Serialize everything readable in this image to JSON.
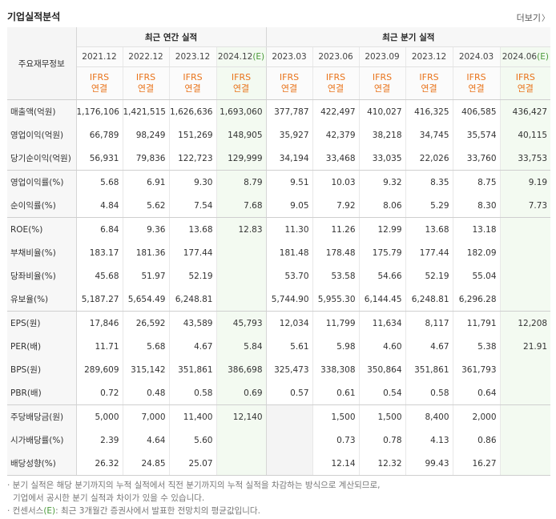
{
  "header": {
    "title": "기업실적분석",
    "more_label": "더보기",
    "more_chevron": "〉"
  },
  "table": {
    "main_header": "주요재무정보",
    "annual_group": "최근 연간 실적",
    "quarter_group": "최근 분기 실적",
    "ifrs_line1": "IFRS",
    "ifrs_line2": "연결",
    "est_mark": "(E)",
    "annual_periods": [
      "2021.12",
      "2022.12",
      "2023.12",
      "2024.12"
    ],
    "quarter_periods": [
      "2023.03",
      "2023.06",
      "2023.09",
      "2023.12",
      "2024.03",
      "2024.06"
    ],
    "rows": [
      {
        "label": "매출액(억원)",
        "values": [
          "1,176,106",
          "1,421,515",
          "1,626,636",
          "1,693,060",
          "377,787",
          "422,497",
          "410,027",
          "416,325",
          "406,585",
          "436,427"
        ]
      },
      {
        "label": "영업이익(억원)",
        "values": [
          "66,789",
          "98,249",
          "151,269",
          "148,905",
          "35,927",
          "42,379",
          "38,218",
          "34,745",
          "35,574",
          "40,115"
        ]
      },
      {
        "label": "당기순이익(억원)",
        "values": [
          "56,931",
          "79,836",
          "122,723",
          "129,999",
          "34,194",
          "33,468",
          "33,035",
          "22,026",
          "33,760",
          "33,753"
        ]
      },
      {
        "label": "영업이익률(%)",
        "values": [
          "5.68",
          "6.91",
          "9.30",
          "8.79",
          "9.51",
          "10.03",
          "9.32",
          "8.35",
          "8.75",
          "9.19"
        ]
      },
      {
        "label": "순이익률(%)",
        "values": [
          "4.84",
          "5.62",
          "7.54",
          "7.68",
          "9.05",
          "7.92",
          "8.06",
          "5.29",
          "8.30",
          "7.73"
        ]
      },
      {
        "label": "ROE(%)",
        "values": [
          "6.84",
          "9.36",
          "13.68",
          "12.83",
          "11.30",
          "11.26",
          "12.99",
          "13.68",
          "13.18",
          ""
        ]
      },
      {
        "label": "부채비율(%)",
        "values": [
          "183.17",
          "181.36",
          "177.44",
          "",
          "181.48",
          "178.48",
          "175.79",
          "177.44",
          "182.09",
          ""
        ]
      },
      {
        "label": "당좌비율(%)",
        "values": [
          "45.68",
          "51.97",
          "52.19",
          "",
          "53.70",
          "53.58",
          "54.66",
          "52.19",
          "55.04",
          ""
        ]
      },
      {
        "label": "유보율(%)",
        "values": [
          "5,187.27",
          "5,654.49",
          "6,248.81",
          "",
          "5,744.90",
          "5,955.30",
          "6,144.45",
          "6,248.81",
          "6,296.28",
          ""
        ]
      },
      {
        "label": "EPS(원)",
        "values": [
          "17,846",
          "26,592",
          "43,589",
          "45,793",
          "12,034",
          "11,799",
          "11,634",
          "8,117",
          "11,791",
          "12,208"
        ]
      },
      {
        "label": "PER(배)",
        "values": [
          "11.71",
          "5.68",
          "4.67",
          "5.84",
          "5.61",
          "5.98",
          "4.60",
          "4.67",
          "5.38",
          "21.91"
        ]
      },
      {
        "label": "BPS(원)",
        "values": [
          "289,609",
          "315,142",
          "351,861",
          "386,698",
          "325,473",
          "338,308",
          "350,864",
          "351,861",
          "361,793",
          ""
        ]
      },
      {
        "label": "PBR(배)",
        "values": [
          "0.72",
          "0.48",
          "0.58",
          "0.69",
          "0.57",
          "0.61",
          "0.54",
          "0.58",
          "0.64",
          ""
        ]
      },
      {
        "label": "주당배당금(원)",
        "values": [
          "5,000",
          "7,000",
          "11,400",
          "12,140",
          "",
          "1,500",
          "1,500",
          "8,400",
          "2,000",
          ""
        ]
      },
      {
        "label": "시가배당률(%)",
        "values": [
          "2.39",
          "4.64",
          "5.60",
          "",
          "",
          "0.73",
          "0.78",
          "4.13",
          "0.86",
          ""
        ]
      },
      {
        "label": "배당성향(%)",
        "values": [
          "26.32",
          "24.85",
          "25.07",
          "",
          "",
          "12.14",
          "12.32",
          "99.43",
          "16.27",
          ""
        ]
      }
    ]
  },
  "notes": {
    "line1": "· 분기 실적은 해당 분기까지의 누적 실적에서 직전 분기까지의 누적 실적을 차감하는 방식으로 계산되므로,",
    "line2": "기업에서 공시한 분기 실적과 차이가 있을 수 있습니다.",
    "line3_prefix": "· 컨센서스",
    "line3_mark": "(E)",
    "line3_suffix": ": 최근 3개월간 증권사에서 발표한 전망치의 평균값입니다."
  },
  "colors": {
    "ifrs": "#e9741c",
    "estimate": "#4a9a3a",
    "estimate_bg": "#f3faf1"
  }
}
